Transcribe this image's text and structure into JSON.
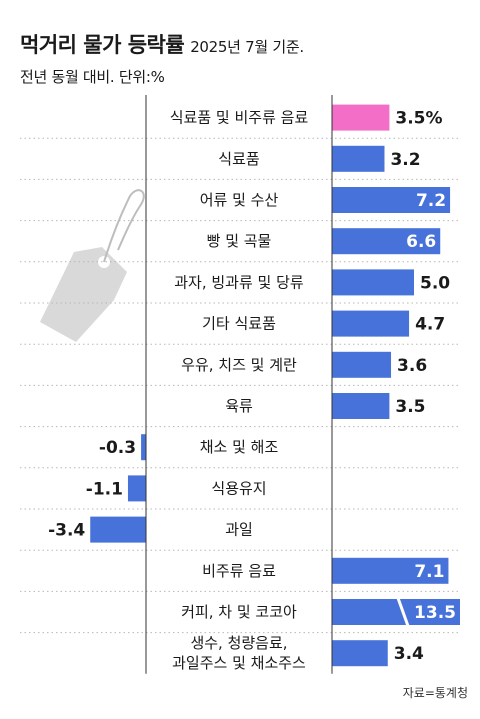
{
  "header": {
    "title": "먹거리 물가 등락률",
    "date": "2025년 7월 기준.",
    "subtitle": "전년 동월 대비. 단위:%"
  },
  "source": "자료=통계청",
  "colors": {
    "bar": "#4772d9",
    "highlight": "#f36ec6",
    "grid": "#b8b8b8",
    "axis": "#333333",
    "tag": "#d9d9d9"
  },
  "chart_data": {
    "type": "bar",
    "orientation": "horizontal",
    "title": "먹거리 물가 등락률",
    "categories": [
      [
        "식료품 및 비주류 음료"
      ],
      [
        "식료품"
      ],
      [
        "어류 및 수산"
      ],
      [
        "빵 및 곡물"
      ],
      [
        "과자, 빙과류 및 당류"
      ],
      [
        "기타 식료품"
      ],
      [
        "우유, 치즈 및 계란"
      ],
      [
        "육류"
      ],
      [
        "채소 및 해조"
      ],
      [
        "식용유지"
      ],
      [
        "과일"
      ],
      [
        "비주류 음료"
      ],
      [
        "커피, 차 및 코코아"
      ],
      [
        "생수, 청량음료,",
        "과일주스 및 채소주스"
      ]
    ],
    "values": [
      3.5,
      3.2,
      7.2,
      6.6,
      5.0,
      4.7,
      3.6,
      3.5,
      -0.3,
      -1.1,
      -3.4,
      7.1,
      13.5,
      3.4
    ],
    "labels": [
      "3.5%",
      "3.2",
      "7.2",
      "6.6",
      "5.0",
      "4.7",
      "3.6",
      "3.5",
      "-0.3",
      "-1.1",
      "-3.4",
      "7.1",
      "13.5",
      "3.4"
    ],
    "highlight_index": 0,
    "broken_axis_index": 12,
    "unit": "%"
  }
}
